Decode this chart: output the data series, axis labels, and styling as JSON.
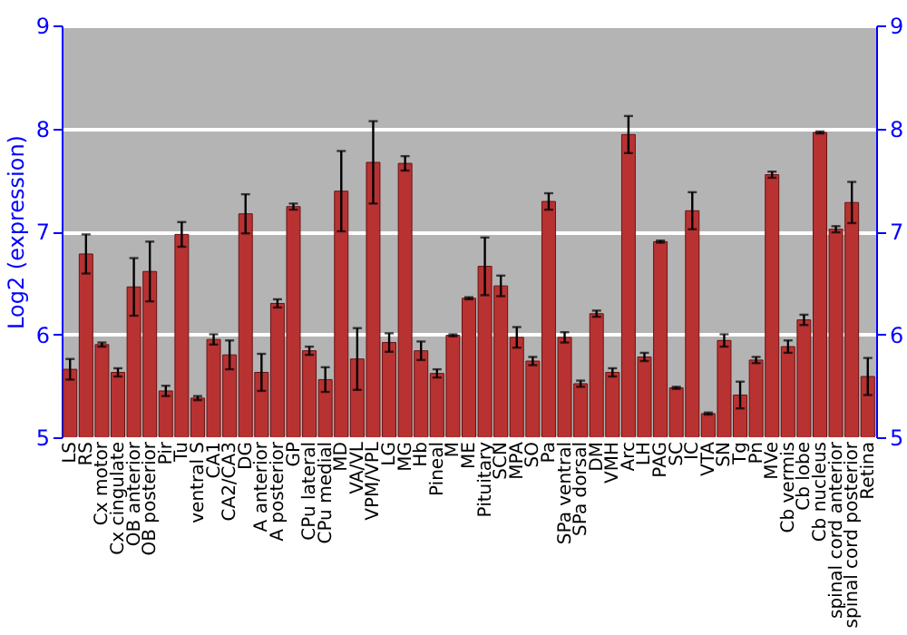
{
  "chart_data": {
    "type": "bar",
    "ylabel": "Log2 (expression)",
    "categories": [
      "LS",
      "RS",
      "Cx motor",
      "Cx cingulate",
      "OB anterior",
      "OB posterior",
      "Pir",
      "Tu",
      "ventral S",
      "CA1",
      "CA2/CA3",
      "DG",
      "A anterior",
      "A posterior",
      "GP",
      "CPu lateral",
      "CPu medial",
      "MD",
      "VA/VL",
      "VPM/VPL",
      "LG",
      "MG",
      "Hb",
      "Pineal",
      "M",
      "ME",
      "Pituitary",
      "SCN",
      "MPA",
      "SO",
      "Pa",
      "SPa ventral",
      "SPa dorsal",
      "DM",
      "VMH",
      "Arc",
      "LH",
      "PAG",
      "SC",
      "IC",
      "VTA",
      "SN",
      "Tg",
      "Pn",
      "MVe",
      "Cb vermis",
      "Cb lobe",
      "Cb nucleus",
      "spinal cord anterior",
      "spinal cord posterior",
      "Retina"
    ],
    "values": [
      5.66,
      6.78,
      5.9,
      5.63,
      6.46,
      6.61,
      5.45,
      6.97,
      5.38,
      5.95,
      5.8,
      7.17,
      5.63,
      6.3,
      7.24,
      5.84,
      5.56,
      7.39,
      5.76,
      7.67,
      5.92,
      7.66,
      5.84,
      5.62,
      5.99,
      6.35,
      6.66,
      6.47,
      5.97,
      5.74,
      7.29,
      5.97,
      5.52,
      6.2,
      5.63,
      7.94,
      5.78,
      6.9,
      5.48,
      7.2,
      5.23,
      5.94,
      5.41,
      5.75,
      7.55,
      5.88,
      6.14,
      7.96,
      7.02,
      7.28,
      5.59
    ],
    "errors": [
      0.1,
      0.19,
      0.02,
      0.04,
      0.28,
      0.29,
      0.05,
      0.12,
      0.02,
      0.05,
      0.14,
      0.19,
      0.18,
      0.04,
      0.03,
      0.04,
      0.12,
      0.39,
      0.3,
      0.4,
      0.09,
      0.07,
      0.09,
      0.04,
      0.01,
      0.01,
      0.28,
      0.1,
      0.1,
      0.04,
      0.08,
      0.05,
      0.03,
      0.03,
      0.04,
      0.18,
      0.04,
      0.01,
      0.01,
      0.18,
      0.01,
      0.06,
      0.13,
      0.03,
      0.03,
      0.06,
      0.05,
      0.01,
      0.03,
      0.2,
      0.18
    ],
    "color": "#b83232",
    "ylim": [
      5,
      9
    ],
    "yticks": [
      5,
      6,
      7,
      8,
      9
    ],
    "y2lim": [
      5,
      9
    ],
    "y2ticks": [
      5,
      6,
      7,
      8,
      9
    ],
    "grid": "y"
  }
}
